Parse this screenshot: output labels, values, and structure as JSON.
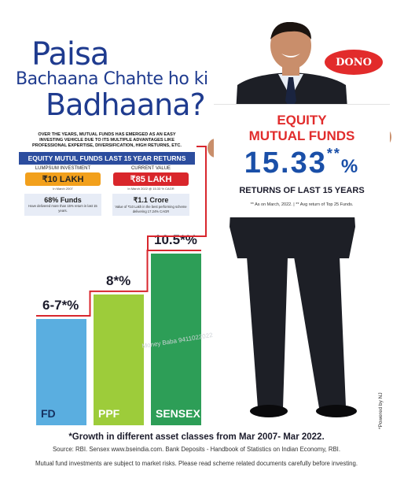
{
  "headline": {
    "line1": "Paisa",
    "line2": "Bachaana Chahte ho ki",
    "line3": "Badhaana?"
  },
  "info_box": {
    "intro": "OVER THE YEARS, MUTUAL FUNDS HAS EMERGED AS AN EASY INVESTING VEHICLE DUE TO ITS MULTIPLE ADVANTAGES LIKE PROFESSIONAL EXPERTISE, DIVERSIFICATION, HIGH RETURNS, ETC.",
    "bar_title": "EQUITY MUTUL FUNDS LAST 15 YEAR RETURNS",
    "lumpsum_label": "LUMPSUM INVESTMENT",
    "lumpsum_value": "₹10 LAKH",
    "lumpsum_note": "In March 2007",
    "current_label": "CURRENT VALUE",
    "current_value": "₹85 LAKH",
    "current_note": "In March 2022 @ 15.33 % CAGR",
    "funds_value": "68% Funds",
    "funds_note": "Have delivered more than 15% return in last 15 years.",
    "crore_value": "₹1.1 Crore",
    "crore_note": "Value of ₹10 Lakh in the best performing scheme delivering 17.24% CAGR",
    "colors": {
      "bar": "#2c4d9e",
      "orange": "#f2a01c",
      "red": "#d9262b"
    }
  },
  "badge": {
    "text": "DONO",
    "color": "#e22b2b"
  },
  "placard": {
    "line1": "EQUITY",
    "line2": "MUTUAL FUNDS",
    "percent": "15.33",
    "stars": "**",
    "percent_sign": "%",
    "returns": "RETURNS OF LAST 15 YEARS",
    "footnote": "** As on March, 2022. | ** Avg return of Top 25 Funds."
  },
  "chart_data": {
    "type": "bar",
    "categories": [
      "FD",
      "PPF",
      "SENSEX"
    ],
    "values": [
      6.5,
      8,
      10.5
    ],
    "value_labels": [
      "6-7*%",
      "8*%",
      "10.5*%"
    ],
    "colors": [
      "#5aaee0",
      "#9dcc3a",
      "#2d9e57"
    ],
    "step_color": "#d8262d",
    "title": "",
    "xlabel": "",
    "ylabel": "",
    "ylim": [
      0,
      10.5
    ]
  },
  "watermark": "Money Baba 9411022022",
  "footer": {
    "main": "*Growth in different asset classes from Mar 2007- Mar 2022.",
    "source": "Source: RBI. Sensex www.bseindia.com. Bank Deposits - Handbook of Statistics on Indian Economy, RBI.",
    "risk": "Mutual fund investments are subject to market risks. Please read scheme related documents carefully before investing.",
    "powered": "*Powered by NJ"
  }
}
